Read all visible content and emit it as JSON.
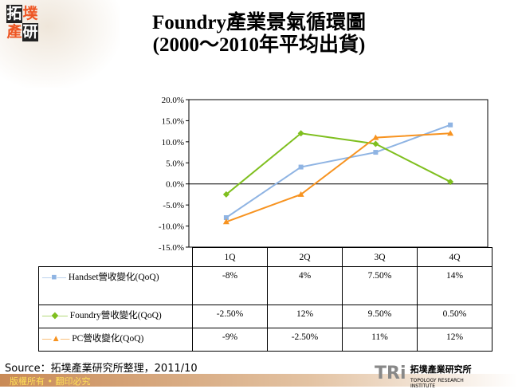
{
  "header": {
    "logo_text": "拓墣產研",
    "title_line1": "Foundry產業景氣循環圖",
    "title_line2": "(2000～2010年平均出貨)"
  },
  "chart_data": {
    "type": "line",
    "categories": [
      "1Q",
      "2Q",
      "3Q",
      "4Q"
    ],
    "ylim": [
      -15,
      20
    ],
    "yticks": [
      "20.0%",
      "15.0%",
      "10.0%",
      "5.0%",
      "0.0%",
      "-5.0%",
      "-10.0%",
      "-15.0%"
    ],
    "series": [
      {
        "name": "Handset營收變化(QoQ)",
        "values": [
          -8,
          4,
          7.5,
          14
        ],
        "labels": [
          "-8%",
          "4%",
          "7.50%",
          "14%"
        ],
        "color": "#8fb4e3",
        "marker": "square"
      },
      {
        "name": "Foundry營收變化(QoQ)",
        "values": [
          -2.5,
          12,
          9.5,
          0.5
        ],
        "labels": [
          "-2.50%",
          "12%",
          "9.50%",
          "0.50%"
        ],
        "color": "#7fbf1f",
        "marker": "diamond"
      },
      {
        "name": "PC營收變化(QoQ)",
        "values": [
          -9,
          -2.5,
          11,
          12
        ],
        "labels": [
          "-9%",
          "-2.50%",
          "11%",
          "12%"
        ],
        "color": "#f79320",
        "marker": "triangle"
      }
    ]
  },
  "footer": {
    "source": "Source：拓墣產業研究所整理，2011/10",
    "copyright": "版權所有 • 翻印必究",
    "brand": "TRi",
    "brand_cn": "拓墣產業研究所",
    "brand_en": "TOPOLOGY RESEARCH INSTITUTE"
  }
}
